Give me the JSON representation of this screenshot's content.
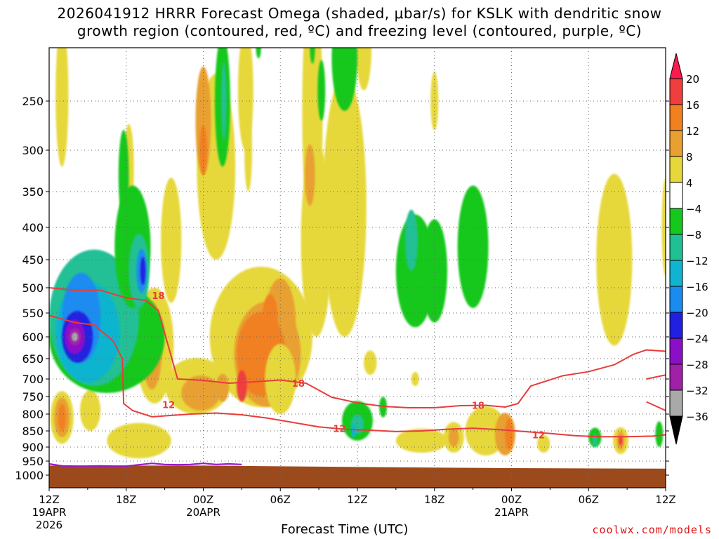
{
  "title": {
    "line1": "2026041912 HRRR Forecast Omega (shaded, μbar/s) for KSLK with dendritic snow",
    "line2": "growth region (contoured, red, ºC) and freezing level (contoured, purple, ºC)"
  },
  "credit": "coolwx.com/models",
  "chart_data": {
    "type": "heatmap",
    "xlabel": "Forecast Time (UTC)",
    "ylabel": "",
    "x_range_hours": [
      0,
      48
    ],
    "y_range_mb": [
      200,
      1050
    ],
    "y_ticks": [
      {
        "label": "250",
        "value": 250
      },
      {
        "label": "300",
        "value": 300
      },
      {
        "label": "350",
        "value": 350
      },
      {
        "label": "400",
        "value": 400
      },
      {
        "label": "450",
        "value": 450
      },
      {
        "label": "500",
        "value": 500
      },
      {
        "label": "550",
        "value": 550
      },
      {
        "label": "600",
        "value": 600
      },
      {
        "label": "650",
        "value": 650
      },
      {
        "label": "700",
        "value": 700
      },
      {
        "label": "750",
        "value": 750
      },
      {
        "label": "800",
        "value": 800
      },
      {
        "label": "850",
        "value": 850
      },
      {
        "label": "900",
        "value": 900
      },
      {
        "label": "950",
        "value": 950
      },
      {
        "label": "1000",
        "value": 1000
      }
    ],
    "x_ticks": [
      {
        "hour": 0,
        "label": "12Z",
        "sub1": "19APR",
        "sub2": "2026"
      },
      {
        "hour": 6,
        "label": "18Z",
        "sub1": "",
        "sub2": ""
      },
      {
        "hour": 12,
        "label": "00Z",
        "sub1": "20APR",
        "sub2": ""
      },
      {
        "hour": 18,
        "label": "06Z",
        "sub1": "",
        "sub2": ""
      },
      {
        "hour": 24,
        "label": "12Z",
        "sub1": "",
        "sub2": ""
      },
      {
        "hour": 30,
        "label": "18Z",
        "sub1": "",
        "sub2": ""
      },
      {
        "hour": 36,
        "label": "00Z",
        "sub1": "21APR",
        "sub2": ""
      },
      {
        "hour": 42,
        "label": "06Z",
        "sub1": "",
        "sub2": ""
      },
      {
        "hour": 48,
        "label": "12Z",
        "sub1": "",
        "sub2": ""
      }
    ],
    "colorbar": {
      "levels": [
        {
          "label": "20",
          "value": 20
        },
        {
          "label": "16",
          "value": 16
        },
        {
          "label": "12",
          "value": 12
        },
        {
          "label": "8",
          "value": 8
        },
        {
          "label": "4",
          "value": 4
        },
        {
          "label": "−4",
          "value": -4
        },
        {
          "label": "−8",
          "value": -8
        },
        {
          "label": "−12",
          "value": -12
        },
        {
          "label": "−16",
          "value": -16
        },
        {
          "label": "−20",
          "value": -20
        },
        {
          "label": "−24",
          "value": -24
        },
        {
          "label": "−28",
          "value": -28
        },
        {
          "label": "−32",
          "value": -32
        },
        {
          "label": "−36",
          "value": -36
        }
      ],
      "colors": [
        "#ff1a4d",
        "#f03e3e",
        "#f08020",
        "#e8a030",
        "#e6d83a",
        "#ffffff",
        "#15c81e",
        "#20c094",
        "#10b4d0",
        "#1a8cf0",
        "#2020e0",
        "#8a10c8",
        "#a020a8",
        "#a9a9a9",
        "#000000"
      ]
    },
    "contours": {
      "minus12_label": "12",
      "minus18_label": "18",
      "minus12_color": "#e83c3c",
      "freezing_color": "#9a18c8",
      "minus18_line": [
        [
          0,
          500
        ],
        [
          2,
          505
        ],
        [
          4,
          505
        ],
        [
          6,
          520
        ],
        [
          7.5,
          525
        ],
        [
          8.5,
          545
        ],
        [
          10,
          700
        ],
        [
          12,
          704
        ],
        [
          14,
          712
        ],
        [
          16,
          708
        ],
        [
          18,
          703
        ],
        [
          20,
          712
        ],
        [
          22,
          752
        ],
        [
          24,
          768
        ],
        [
          26,
          778
        ],
        [
          28,
          782
        ],
        [
          30,
          782
        ],
        [
          32,
          776
        ],
        [
          34,
          775
        ],
        [
          35.5,
          780
        ],
        [
          36.5,
          770
        ],
        [
          37.5,
          720
        ],
        [
          40,
          692
        ],
        [
          42,
          682
        ],
        [
          44,
          665
        ],
        [
          45.5,
          640
        ],
        [
          46.5,
          630
        ],
        [
          48,
          633
        ]
      ],
      "minus12_line": [
        [
          0,
          555
        ],
        [
          2,
          570
        ],
        [
          3.5,
          575
        ],
        [
          5,
          610
        ],
        [
          5.7,
          650
        ],
        [
          5.8,
          770
        ],
        [
          6.5,
          790
        ],
        [
          8,
          808
        ],
        [
          11,
          800
        ],
        [
          13,
          797
        ],
        [
          15,
          802
        ],
        [
          17,
          812
        ],
        [
          19,
          825
        ],
        [
          21,
          838
        ],
        [
          23,
          845
        ],
        [
          25,
          848
        ],
        [
          27,
          852
        ],
        [
          29,
          850
        ],
        [
          31,
          845
        ],
        [
          33,
          842
        ],
        [
          35,
          846
        ],
        [
          37,
          852
        ],
        [
          39,
          858
        ],
        [
          41,
          865
        ],
        [
          43,
          868
        ],
        [
          45,
          868
        ],
        [
          47,
          866
        ],
        [
          48,
          862
        ]
      ],
      "freezing_line": [
        [
          0,
          960
        ],
        [
          1,
          967
        ],
        [
          2,
          968
        ],
        [
          3,
          968
        ],
        [
          4,
          967
        ],
        [
          5,
          968
        ],
        [
          6,
          968
        ],
        [
          7,
          963
        ],
        [
          8,
          958
        ],
        [
          9,
          962
        ],
        [
          10,
          963
        ],
        [
          11,
          962
        ],
        [
          12,
          958
        ],
        [
          13,
          962
        ],
        [
          14,
          960
        ],
        [
          15,
          962
        ]
      ],
      "ground_surface": [
        [
          0,
          966
        ],
        [
          12,
          966
        ],
        [
          24,
          971
        ],
        [
          36,
          975
        ],
        [
          48,
          977
        ]
      ]
    }
  }
}
